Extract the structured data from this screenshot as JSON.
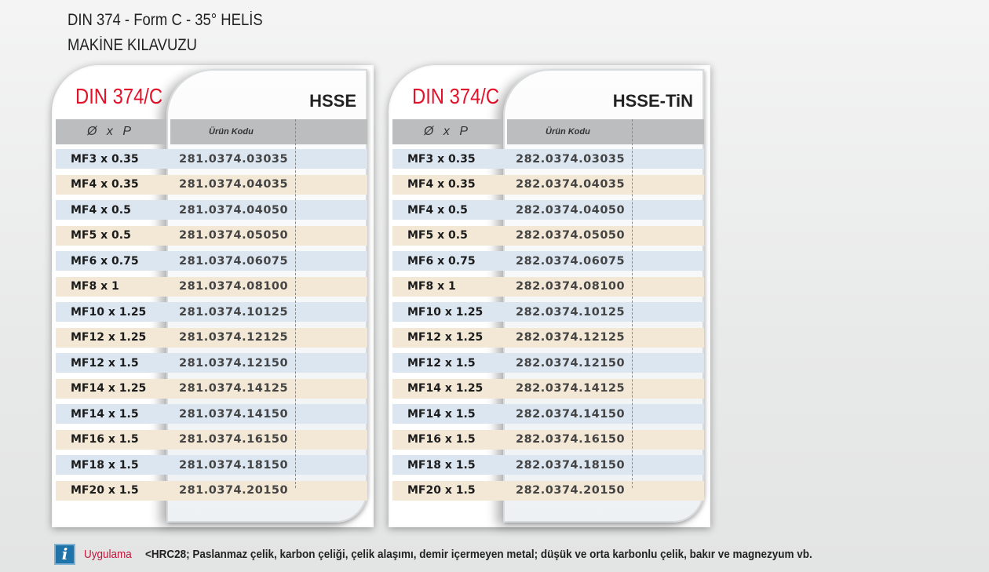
{
  "title_line1": "DIN 374 - Form C - 35° HELİS",
  "title_line2": "MAKİNE KILAVUZU",
  "header": {
    "size": "Ø x P",
    "code": "Ürün Kodu"
  },
  "cards": [
    {
      "din": "DIN 374/C",
      "material": "HSSE",
      "codes": [
        "281.0374.03035",
        "281.0374.04035",
        "281.0374.04050",
        "281.0374.05050",
        "281.0374.06075",
        "281.0374.08100",
        "281.0374.10125",
        "281.0374.12125",
        "281.0374.12150",
        "281.0374.14125",
        "281.0374.14150",
        "281.0374.16150",
        "281.0374.18150",
        "281.0374.20150"
      ]
    },
    {
      "din": "DIN 374/C",
      "material": "HSSE-TiN",
      "codes": [
        "282.0374.03035",
        "282.0374.04035",
        "282.0374.04050",
        "282.0374.05050",
        "282.0374.06075",
        "282.0374.08100",
        "282.0374.10125",
        "282.0374.12125",
        "282.0374.12150",
        "282.0374.14125",
        "282.0374.14150",
        "282.0374.16150",
        "282.0374.18150",
        "282.0374.20150"
      ]
    }
  ],
  "sizes": [
    "MF3 x 0.35",
    "MF4 x 0.35",
    "MF4 x 0.5",
    "MF5 x 0.5",
    "MF6 x 0.75",
    "MF8 x 1",
    "MF10 x 1.25",
    "MF12 x 1.25",
    "MF12 x 1.5",
    "MF14 x 1.25",
    "MF14 x 1.5",
    "MF16 x 1.5",
    "MF18 x 1.5",
    "MF20 x 1.5"
  ],
  "footer": {
    "icon": "info-icon",
    "label": "Uygulama",
    "text": "<HRC28;  Paslanmaz çelik, karbon çeliği, çelik alaşımı, demir içermeyen metal; düşük ve orta karbonlu çelik, bakır ve magnezyum vb."
  },
  "colors": {
    "brand_red": "#e3122b",
    "row_blue": "#dbe6f1",
    "row_beige": "#f3e8d6",
    "info_blue": "#1e73a8"
  }
}
